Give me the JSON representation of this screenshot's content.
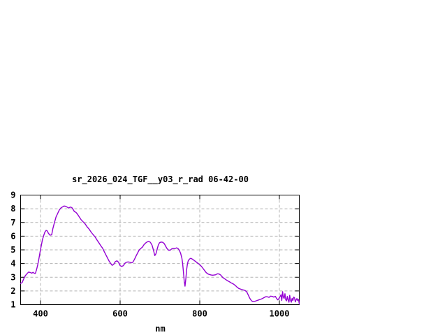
{
  "page": {
    "background": "#ffffff"
  },
  "chart_data": {
    "type": "line",
    "title": "sr_2026_024_TGF__y03_r_rad 06-42-00",
    "xlabel": "nm",
    "ylabel": "",
    "xlim": [
      350,
      1050
    ],
    "ylim": [
      1,
      9
    ],
    "xticks": [
      400,
      600,
      800,
      1000
    ],
    "yticks": [
      1,
      2,
      3,
      4,
      5,
      6,
      7,
      8,
      9
    ],
    "grid": true,
    "grid_style": "dashed",
    "legend_position": "none",
    "line_color": "#9400d3",
    "grid_color": "#b4b4b4",
    "border_color": "#000000",
    "background_color": "#ffffff",
    "series": [
      {
        "name": "sr_2026_024_TGF__y03_r_rad",
        "x": [
          350,
          354,
          358,
          362,
          366,
          370,
          374,
          378,
          381,
          384,
          387,
          390,
          393,
          396,
          399,
          402,
          405,
          408,
          411,
          414,
          417,
          420,
          424,
          428,
          431,
          435,
          439,
          443,
          447,
          451,
          455,
          459,
          463,
          467,
          471,
          475,
          479,
          482,
          485,
          489,
          493,
          497,
          502,
          507,
          512,
          517,
          522,
          527,
          532,
          537,
          542,
          547,
          552,
          556,
          560,
          564,
          568,
          572,
          576,
          580,
          584,
          588,
          592,
          596,
          600,
          604,
          608,
          612,
          616,
          620,
          624,
          628,
          632,
          636,
          640,
          644,
          648,
          652,
          656,
          660,
          664,
          668,
          672,
          676,
          680,
          684,
          687,
          690,
          693,
          696,
          699,
          703,
          707,
          711,
          714,
          718,
          722,
          726,
          730,
          734,
          738,
          742,
          746,
          749,
          752,
          755,
          757,
          759,
          761,
          763,
          765,
          767,
          769,
          771,
          774,
          777,
          780,
          784,
          788,
          792,
          796,
          800,
          804,
          808,
          812,
          816,
          820,
          824,
          828,
          832,
          836,
          840,
          844,
          848,
          852,
          855,
          858,
          862,
          866,
          870,
          874,
          878,
          882,
          886,
          890,
          894,
          898,
          902,
          906,
          910,
          914,
          918,
          922,
          926,
          930,
          934,
          938,
          942,
          946,
          950,
          954,
          958,
          962,
          966,
          970,
          974,
          978,
          982,
          986,
          990,
          993,
          996,
          999,
          1002,
          1004,
          1006,
          1008,
          1010,
          1012,
          1014,
          1016,
          1018,
          1020,
          1022,
          1024,
          1026,
          1028,
          1030,
          1032,
          1034,
          1036,
          1038,
          1040,
          1042,
          1044,
          1046,
          1048,
          1050
        ],
        "y": [
          2.55,
          2.62,
          2.9,
          3.12,
          3.25,
          3.38,
          3.35,
          3.3,
          3.36,
          3.3,
          3.28,
          3.55,
          3.9,
          4.35,
          4.85,
          5.3,
          5.75,
          6.05,
          6.3,
          6.42,
          6.38,
          6.2,
          6.07,
          6.1,
          6.55,
          7.0,
          7.4,
          7.65,
          7.9,
          8.05,
          8.13,
          8.2,
          8.18,
          8.12,
          8.05,
          8.13,
          8.08,
          7.95,
          7.8,
          7.74,
          7.6,
          7.42,
          7.2,
          7.05,
          6.9,
          6.68,
          6.52,
          6.3,
          6.12,
          5.95,
          5.72,
          5.5,
          5.28,
          5.12,
          4.88,
          4.65,
          4.42,
          4.2,
          4.02,
          3.87,
          3.95,
          4.15,
          4.2,
          4.1,
          3.85,
          3.79,
          3.85,
          4.02,
          4.1,
          4.12,
          4.1,
          4.05,
          4.1,
          4.3,
          4.55,
          4.78,
          5.0,
          5.1,
          5.2,
          5.38,
          5.5,
          5.58,
          5.62,
          5.55,
          5.35,
          4.95,
          4.58,
          4.72,
          5.05,
          5.35,
          5.52,
          5.57,
          5.55,
          5.45,
          5.28,
          5.08,
          4.97,
          4.98,
          5.08,
          5.1,
          5.1,
          5.15,
          5.08,
          4.95,
          4.75,
          4.4,
          4.0,
          3.4,
          2.7,
          2.35,
          2.9,
          3.55,
          3.95,
          4.2,
          4.32,
          4.38,
          4.35,
          4.27,
          4.18,
          4.1,
          4.0,
          3.92,
          3.8,
          3.65,
          3.5,
          3.35,
          3.25,
          3.2,
          3.17,
          3.15,
          3.16,
          3.18,
          3.25,
          3.24,
          3.18,
          3.08,
          2.97,
          2.9,
          2.82,
          2.74,
          2.68,
          2.6,
          2.55,
          2.48,
          2.38,
          2.27,
          2.18,
          2.14,
          2.1,
          2.07,
          2.03,
          1.93,
          1.7,
          1.45,
          1.28,
          1.22,
          1.24,
          1.28,
          1.32,
          1.36,
          1.4,
          1.46,
          1.52,
          1.58,
          1.57,
          1.53,
          1.62,
          1.6,
          1.55,
          1.6,
          1.45,
          1.35,
          1.45,
          1.6,
          1.72,
          1.3,
          1.95,
          1.55,
          1.45,
          1.8,
          1.35,
          1.28,
          1.6,
          1.35,
          1.18,
          1.68,
          1.3,
          1.18,
          1.45,
          1.3,
          1.55,
          1.5,
          1.2,
          1.35,
          1.45,
          1.3,
          1.38,
          1.05
        ]
      }
    ]
  }
}
